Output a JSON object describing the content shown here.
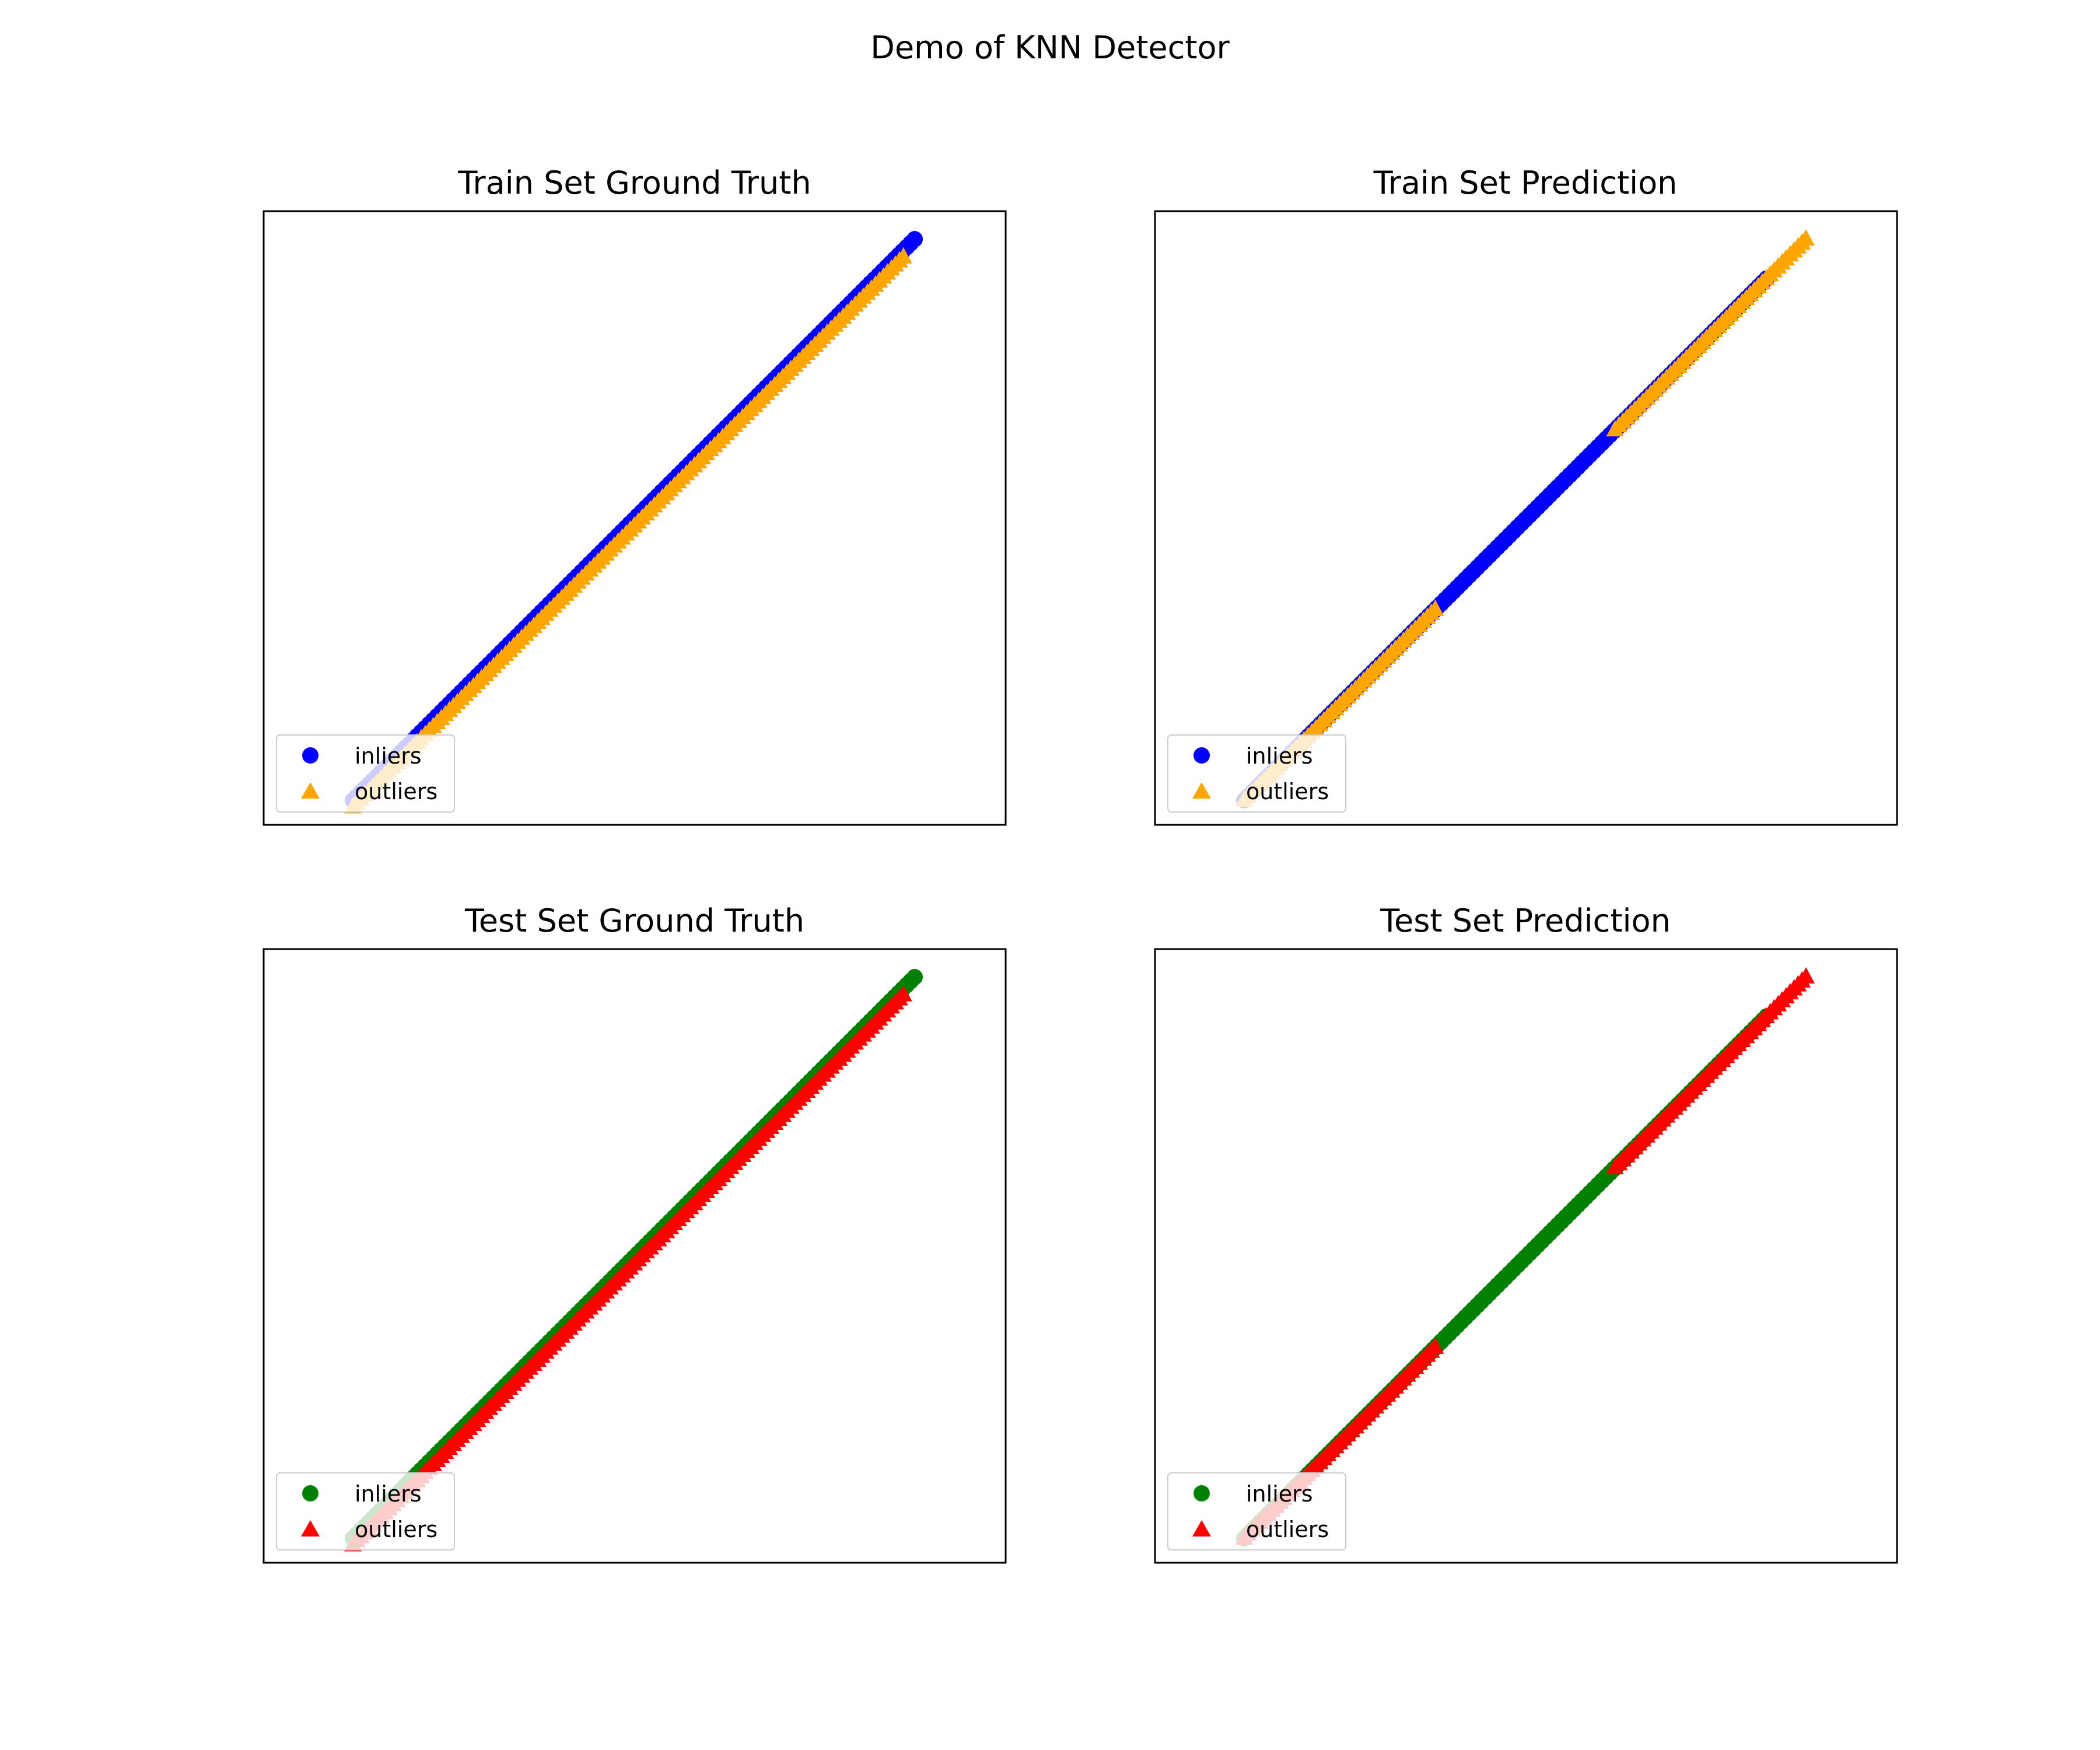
{
  "figure": {
    "suptitle": "Demo of KNN Detector"
  },
  "legend_labels": [
    "inliers",
    "outliers"
  ],
  "colors": {
    "train_inlier": "#0000ff",
    "train_outlier": "#ffa500",
    "test_inlier": "#008000",
    "test_outlier": "#ff0000"
  },
  "chart_data": [
    {
      "type": "scatter",
      "title": "Train Set Ground Truth",
      "xlabel": "",
      "ylabel": "",
      "ticks_visible": false,
      "legend_loc": "lower-left",
      "series": [
        {
          "name": "inliers",
          "marker": "circle",
          "color": "#0000ff",
          "x_range": [
            0.0,
            1.0
          ],
          "y_equals_x": true
        },
        {
          "name": "outliers",
          "marker": "triangle",
          "color": "#ffa500",
          "x_range": [
            0.0,
            0.98
          ],
          "y_equals_x": true
        }
      ]
    },
    {
      "type": "scatter",
      "title": "Train Set Prediction",
      "xlabel": "",
      "ylabel": "",
      "ticks_visible": false,
      "legend_loc": "lower-left",
      "series": [
        {
          "name": "inliers",
          "marker": "circle",
          "color": "#0000ff",
          "x_range": [
            0.0,
            0.93
          ],
          "y_equals_x": true
        },
        {
          "name": "outliers",
          "marker": "triangle",
          "color": "#ffa500",
          "x_range": [
            [
              0.0,
              0.34
            ],
            [
              0.66,
              1.0
            ]
          ],
          "y_equals_x": true
        }
      ]
    },
    {
      "type": "scatter",
      "title": "Test Set Ground Truth",
      "xlabel": "",
      "ylabel": "",
      "ticks_visible": false,
      "legend_loc": "lower-left",
      "series": [
        {
          "name": "inliers",
          "marker": "circle",
          "color": "#008000",
          "x_range": [
            0.0,
            1.0
          ],
          "y_equals_x": true
        },
        {
          "name": "outliers",
          "marker": "triangle",
          "color": "#ff0000",
          "x_range": [
            0.0,
            0.98
          ],
          "y_equals_x": true
        }
      ]
    },
    {
      "type": "scatter",
      "title": "Test Set Prediction",
      "xlabel": "",
      "ylabel": "",
      "ticks_visible": false,
      "legend_loc": "lower-left",
      "series": [
        {
          "name": "inliers",
          "marker": "circle",
          "color": "#008000",
          "x_range": [
            0.0,
            0.93
          ],
          "y_equals_x": true
        },
        {
          "name": "outliers",
          "marker": "triangle",
          "color": "#ff0000",
          "x_range": [
            [
              0.0,
              0.34
            ],
            [
              0.66,
              1.0
            ]
          ],
          "y_equals_x": true
        }
      ]
    }
  ]
}
